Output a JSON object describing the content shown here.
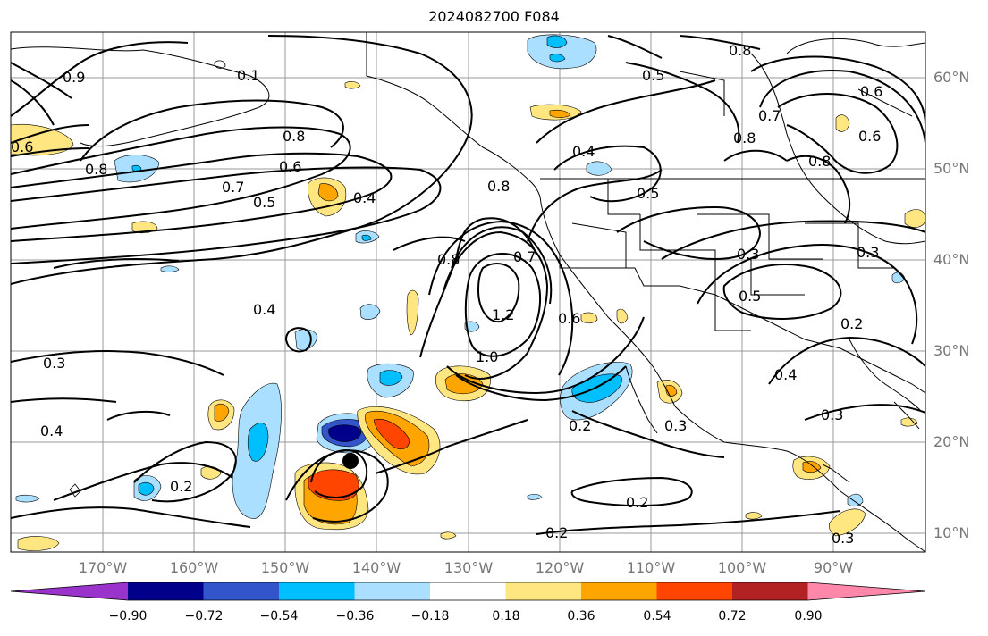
{
  "title": "2024082700 F084",
  "lat_labels": [
    "60°N",
    "50°N",
    "40°N",
    "30°N",
    "20°N",
    "10°N"
  ],
  "lon_labels": [
    "170°W",
    "160°W",
    "150°W",
    "140°W",
    "130°W",
    "120°W",
    "110°W",
    "100°W",
    "90°W"
  ],
  "colorbar": {
    "colors": [
      "#9933cc",
      "#00008b",
      "#3355cc",
      "#00bfff",
      "#aadfff",
      "#ffffff",
      "#ffe680",
      "#ffa500",
      "#ff4500",
      "#b22222",
      "#ff88aa"
    ],
    "ticks": [
      "−0.90",
      "−0.72",
      "−0.54",
      "−0.36",
      "−0.18",
      "0.18",
      "0.36",
      "0.54",
      "0.72",
      "0.90"
    ]
  },
  "contour_labels": [
    "0.8",
    "0.5",
    "0.6",
    "0.7",
    "0.6",
    "0.8",
    "0.8",
    "0.9",
    "0.8",
    "0.7",
    "0.6",
    "0.5",
    "0.4",
    "0.8",
    "0.4",
    "0.5",
    "0.3",
    "0.3",
    "0.5",
    "0.2",
    "0.8",
    "0.7",
    "1.2",
    "0.6",
    "1.0",
    "0.4",
    "0.3",
    "0.4",
    "0.3",
    "0.2",
    "0.3",
    "0.2",
    "0.2",
    "0.2",
    "0.4",
    "0.3",
    "0.6",
    "0.1",
    "0.8"
  ]
}
